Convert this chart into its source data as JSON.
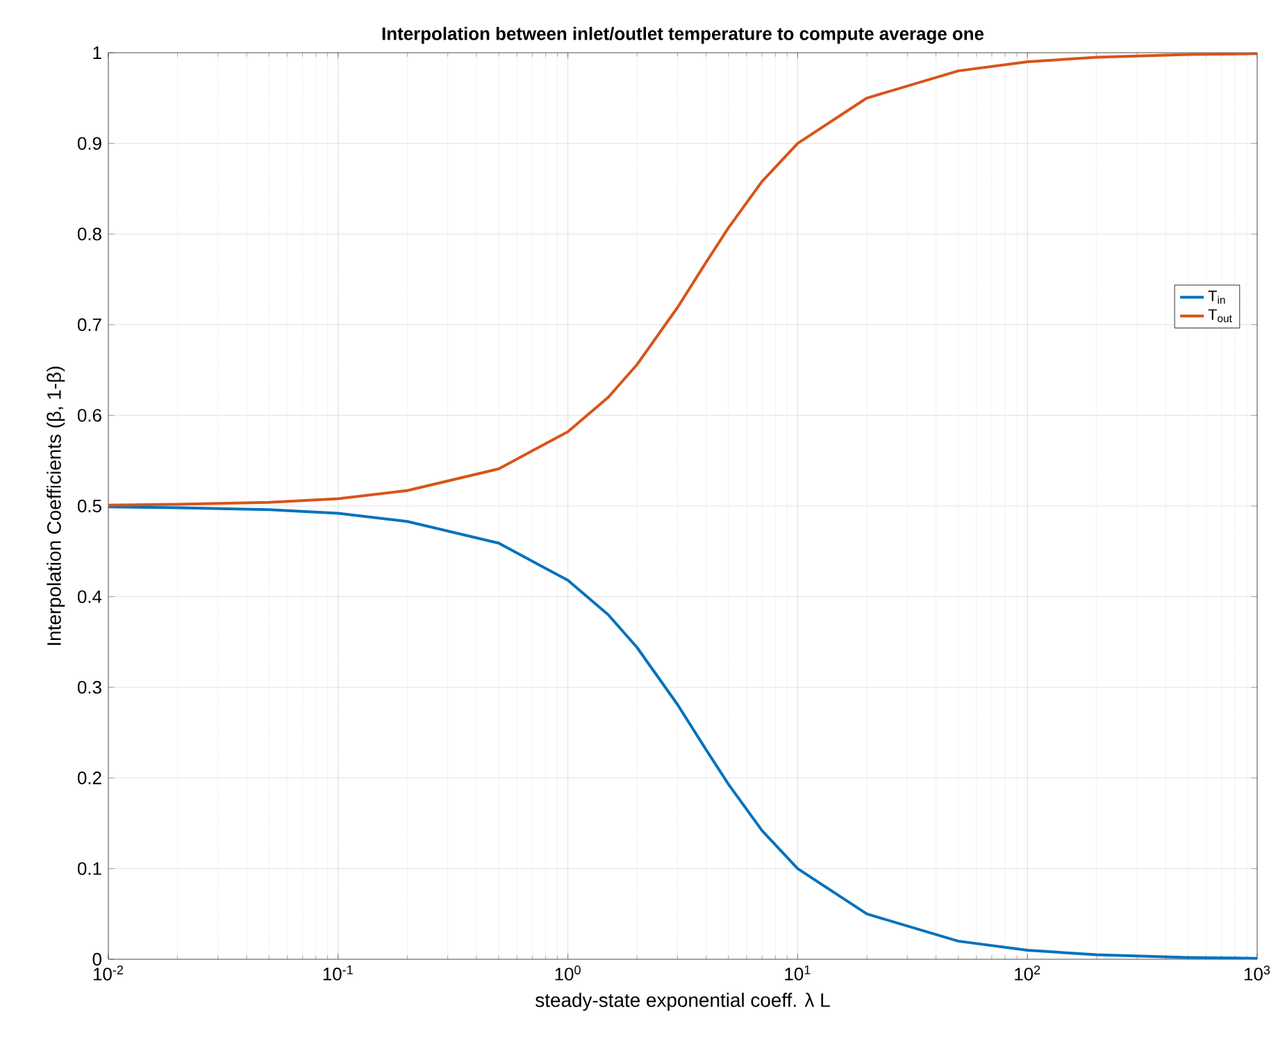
{
  "chart_data": {
    "type": "line",
    "title": "Interpolation between inlet/outlet temperature to compute average one",
    "xlabel": "steady-state  exponential  coeff.  λ  L",
    "ylabel": "Interpolation  Coefficients  (β,  1-β)",
    "x": [
      0.01,
      0.02,
      0.05,
      0.1,
      0.2,
      0.5,
      1,
      1.5,
      2,
      3,
      4,
      5,
      7,
      10,
      20,
      50,
      100,
      200,
      500,
      1000
    ],
    "series": [
      {
        "name": "T$_{in}$",
        "color": "#0072bd",
        "values": [
          0.499,
          0.498,
          0.496,
          0.492,
          0.483,
          0.459,
          0.418,
          0.38,
          0.344,
          0.281,
          0.231,
          0.193,
          0.142,
          0.1,
          0.05,
          0.02,
          0.01,
          0.005,
          0.002,
          0.001
        ]
      },
      {
        "name": "T$_{out}$",
        "color": "#d95319",
        "values": [
          0.501,
          0.502,
          0.504,
          0.508,
          0.517,
          0.541,
          0.582,
          0.62,
          0.656,
          0.719,
          0.769,
          0.807,
          0.858,
          0.9,
          0.95,
          0.98,
          0.99,
          0.995,
          0.998,
          0.999
        ]
      }
    ],
    "log": "x",
    "xlim": [
      0.01,
      1000
    ],
    "ylim": [
      0,
      1
    ],
    "xticks": [
      {
        "value": 0.01,
        "label": "10$^{-2}$"
      },
      {
        "value": 0.1,
        "label": "10$^{-1}$"
      },
      {
        "value": 1,
        "label": "10$^{0}$"
      },
      {
        "value": 10,
        "label": "10$^{1}$"
      },
      {
        "value": 100,
        "label": "10$^{2}$"
      },
      {
        "value": 1000,
        "label": "10$^{3}$"
      }
    ],
    "yticks": [
      0,
      0.1,
      0.2,
      0.3,
      0.4,
      0.5,
      0.6,
      0.7,
      0.8,
      0.9,
      1
    ],
    "grid": true,
    "legend": "right",
    "line_style": "solid",
    "marker": "none"
  }
}
